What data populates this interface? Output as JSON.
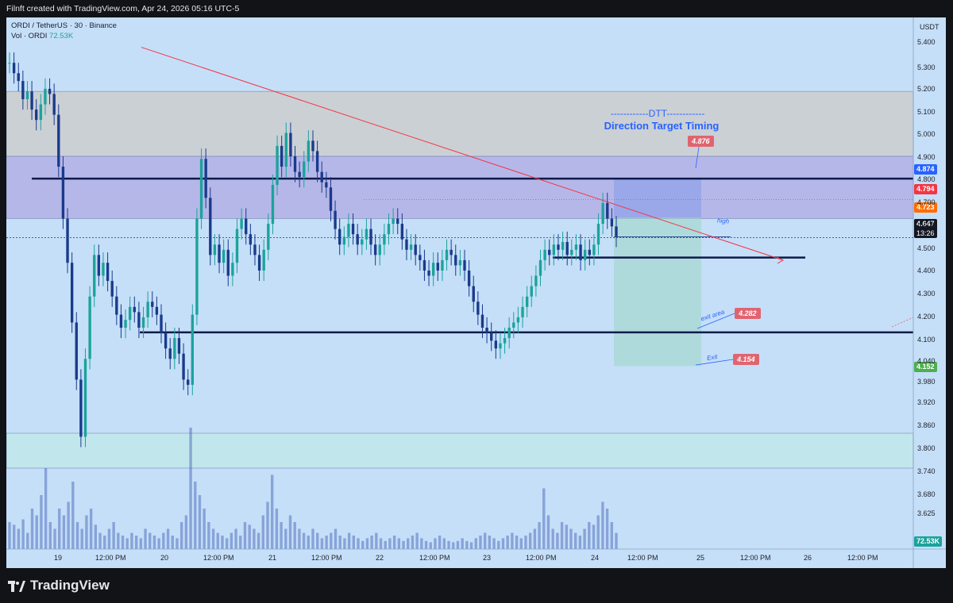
{
  "header": {
    "text": "Filnft created with TradingView.com, Apr 24, 2026 05:16 UTC-5"
  },
  "legend": {
    "symbol_line": "ORDI / TetherUS · 30 · Binance",
    "vol_label": "Vol · ORDI",
    "vol_value": "72.53K"
  },
  "footer": {
    "brand": "TradingView"
  },
  "colors": {
    "background": "#c5dff8",
    "up_candle": "#1ba39c",
    "down_candle": "#1a3a8c",
    "trendline": "#f23645",
    "level_line": "#0b1a4a",
    "accent_blue": "#2962ff"
  },
  "chart_data": {
    "type": "candlestick",
    "symbol": "ORDI / TetherUS",
    "timeframe": "30",
    "exchange": "Binance",
    "currency": "USDT",
    "y_ticks": [
      "5.400",
      "5.300",
      "5.200",
      "5.100",
      "5.000",
      "4.900",
      "4.800",
      "4.700",
      "4.600",
      "4.500",
      "4.400",
      "4.300",
      "4.200",
      "4.100",
      "4.040",
      "3.980",
      "3.920",
      "3.860",
      "3.800",
      "3.740",
      "3.680",
      "3.625"
    ],
    "x_ticks": [
      "19",
      "12:00 PM",
      "20",
      "12:00 PM",
      "21",
      "12:00 PM",
      "22",
      "12:00 PM",
      "23",
      "12:00 PM",
      "24",
      "12:00 PM",
      "25",
      "12:00 PM",
      "26",
      "12:00 PM"
    ],
    "price_labels": [
      {
        "value": "4.874",
        "color": "#2962ff"
      },
      {
        "value": "4.794",
        "color": "#f23645"
      },
      {
        "value": "4.723",
        "color": "#ff6d00"
      },
      {
        "value": "4.647",
        "sub": "13:26",
        "color": "#131722"
      },
      {
        "value": "4.152",
        "color": "#4caf50"
      },
      {
        "value": "72.53K",
        "color": "#1ba39c"
      }
    ],
    "annotations": {
      "dtt_dash": "------------DTT------------",
      "dtt_title": "Direction Target Timing",
      "target_note": "4.876",
      "exit_area_label": "exit area",
      "exit_area_note": "4.282",
      "exit_label": "Exit",
      "exit_note": "4.154",
      "high_label": "high"
    },
    "levels": [
      4.874,
      4.57,
      4.282
    ],
    "zones": [
      {
        "from": 4.96,
        "to": 5.21
      },
      {
        "from": 4.72,
        "to": 4.96
      },
      {
        "from": 3.83,
        "to": 3.93
      }
    ],
    "trendline": {
      "from": {
        "x": "Apr 19 ~06:00",
        "y": 5.38
      },
      "to": {
        "x": "Apr 25 ~12:00",
        "y": 4.56
      }
    },
    "position": {
      "entry": 4.723,
      "target_top": 4.876,
      "stop_bottom": 4.152
    },
    "closes": [
      5.32,
      5.28,
      5.25,
      5.18,
      5.21,
      5.14,
      5.1,
      5.16,
      5.22,
      5.2,
      5.12,
      4.92,
      4.72,
      4.55,
      4.32,
      4.1,
      3.88,
      4.18,
      4.42,
      4.58,
      4.5,
      4.55,
      4.48,
      4.42,
      4.35,
      4.3,
      4.33,
      4.38,
      4.36,
      4.3,
      4.34,
      4.4,
      4.38,
      4.35,
      4.28,
      4.22,
      4.18,
      4.26,
      4.2,
      4.1,
      4.08,
      4.35,
      4.72,
      4.95,
      4.8,
      4.58,
      4.62,
      4.55,
      4.6,
      4.5,
      4.55,
      4.68,
      4.72,
      4.66,
      4.62,
      4.58,
      4.52,
      4.6,
      4.7,
      4.85,
      5.0,
      4.92,
      5.05,
      4.96,
      4.9,
      4.88,
      4.94,
      5.02,
      4.98,
      4.9,
      4.86,
      4.84,
      4.75,
      4.68,
      4.62,
      4.65,
      4.7,
      4.66,
      4.62,
      4.64,
      4.68,
      4.62,
      4.58,
      4.62,
      4.66,
      4.7,
      4.72,
      4.7,
      4.64,
      4.6,
      4.62,
      4.58,
      4.56,
      4.52,
      4.5,
      4.55,
      4.52,
      4.56,
      4.6,
      4.58,
      4.54,
      4.56,
      4.52,
      4.46,
      4.4,
      4.35,
      4.3,
      4.28,
      4.25,
      4.22,
      4.24,
      4.26,
      4.3,
      4.32,
      4.34,
      4.38,
      4.42,
      4.46,
      4.5,
      4.56,
      4.6,
      4.58,
      4.62,
      4.6,
      4.63,
      4.58,
      4.6,
      4.62,
      4.56,
      4.6,
      4.58,
      4.62,
      4.7,
      4.78,
      4.72,
      4.69,
      4.65
    ],
    "volumes": [
      0.2,
      0.18,
      0.15,
      0.22,
      0.12,
      0.3,
      0.25,
      0.4,
      0.6,
      0.2,
      0.15,
      0.3,
      0.25,
      0.35,
      0.5,
      0.2,
      0.15,
      0.25,
      0.3,
      0.18,
      0.12,
      0.1,
      0.15,
      0.2,
      0.12,
      0.1,
      0.08,
      0.12,
      0.1,
      0.08,
      0.15,
      0.12,
      0.1,
      0.08,
      0.12,
      0.15,
      0.1,
      0.08,
      0.2,
      0.25,
      0.9,
      0.5,
      0.4,
      0.3,
      0.2,
      0.15,
      0.12,
      0.1,
      0.08,
      0.12,
      0.15,
      0.1,
      0.2,
      0.18,
      0.15,
      0.12,
      0.25,
      0.35,
      0.55,
      0.3,
      0.2,
      0.15,
      0.25,
      0.2,
      0.15,
      0.12,
      0.1,
      0.15,
      0.12,
      0.08,
      0.1,
      0.12,
      0.15,
      0.1,
      0.08,
      0.12,
      0.1,
      0.08,
      0.06,
      0.08,
      0.1,
      0.12,
      0.08,
      0.06,
      0.08,
      0.1,
      0.08,
      0.06,
      0.08,
      0.1,
      0.12,
      0.08,
      0.06,
      0.05,
      0.08,
      0.1,
      0.08,
      0.06,
      0.05,
      0.06,
      0.08,
      0.06,
      0.05,
      0.08,
      0.1,
      0.12,
      0.1,
      0.08,
      0.06,
      0.08,
      0.1,
      0.12,
      0.1,
      0.08,
      0.1,
      0.12,
      0.15,
      0.2,
      0.45,
      0.25,
      0.15,
      0.12,
      0.2,
      0.18,
      0.15,
      0.12,
      0.1,
      0.15,
      0.2,
      0.18,
      0.25,
      0.35,
      0.3,
      0.2,
      0.12
    ]
  }
}
